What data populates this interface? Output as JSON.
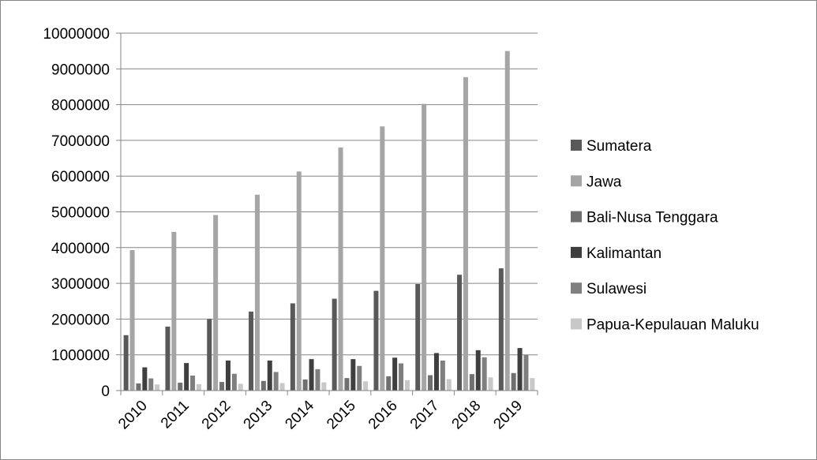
{
  "chart_data": {
    "type": "bar",
    "title": "",
    "xlabel": "",
    "ylabel": "",
    "categories": [
      "2010",
      "2011",
      "2012",
      "2013",
      "2014",
      "2015",
      "2016",
      "2017",
      "2018",
      "2019"
    ],
    "ylim": [
      0,
      10000000
    ],
    "yticks": [
      0,
      1000000,
      2000000,
      3000000,
      4000000,
      5000000,
      6000000,
      7000000,
      8000000,
      9000000,
      10000000
    ],
    "grid": "horizontal",
    "legend_position": "right",
    "series": [
      {
        "name": "Sumatera",
        "color": "#595959",
        "values": [
          1550000,
          1790000,
          2000000,
          2210000,
          2440000,
          2570000,
          2790000,
          2980000,
          3240000,
          3420000
        ]
      },
      {
        "name": "Jawa",
        "color": "#a5a5a5",
        "values": [
          3930000,
          4440000,
          4910000,
          5480000,
          6130000,
          6800000,
          7390000,
          8020000,
          8770000,
          9500000
        ]
      },
      {
        "name": "Bali-Nusa Tenggara",
        "color": "#6f6f6f",
        "values": [
          200000,
          220000,
          240000,
          270000,
          310000,
          350000,
          400000,
          430000,
          460000,
          490000
        ]
      },
      {
        "name": "Kalimantan",
        "color": "#3f3f3f",
        "values": [
          650000,
          770000,
          840000,
          840000,
          880000,
          880000,
          920000,
          1050000,
          1130000,
          1190000
        ]
      },
      {
        "name": "Sulawesi",
        "color": "#7f7f7f",
        "values": [
          340000,
          420000,
          470000,
          520000,
          600000,
          690000,
          760000,
          840000,
          930000,
          1000000
        ]
      },
      {
        "name": "Papua-Kepulauan Maluku",
        "color": "#c8c8c8",
        "values": [
          170000,
          180000,
          190000,
          210000,
          230000,
          260000,
          290000,
          320000,
          370000,
          350000
        ]
      }
    ]
  }
}
